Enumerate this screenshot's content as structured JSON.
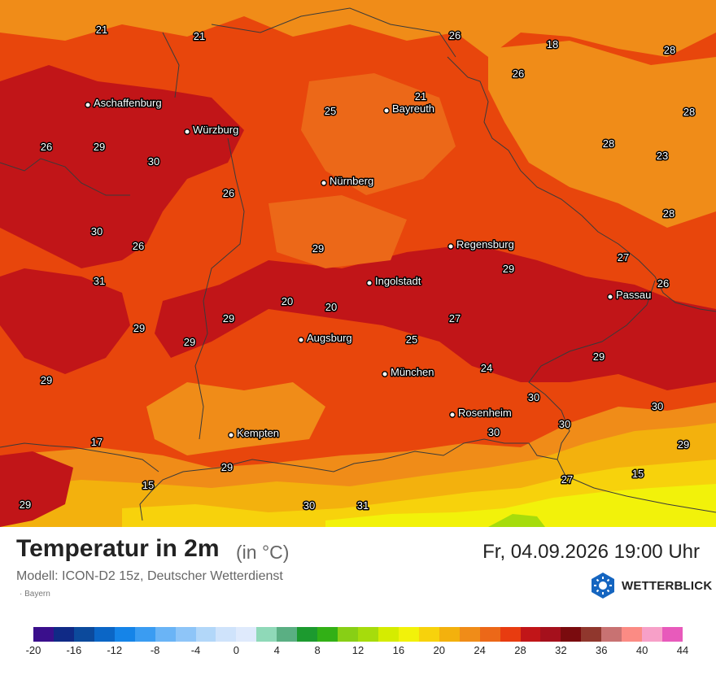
{
  "map": {
    "region": "Bayern",
    "cities": [
      {
        "name": "Aschaffenburg"
      },
      {
        "name": "Würzburg"
      },
      {
        "name": "Bayreuth"
      },
      {
        "name": "Nürnberg"
      },
      {
        "name": "Regensburg"
      },
      {
        "name": "Ingolstadt"
      },
      {
        "name": "Passau"
      },
      {
        "name": "Augsburg"
      },
      {
        "name": "München"
      },
      {
        "name": "Rosenheim"
      },
      {
        "name": "Kempten"
      }
    ],
    "temperature_labels": [
      "21",
      "21",
      "26",
      "18",
      "28",
      "26",
      "21",
      "25",
      "28",
      "26",
      "29",
      "30",
      "28",
      "23",
      "26",
      "28",
      "30",
      "26",
      "29",
      "31",
      "27",
      "26",
      "29",
      "20",
      "20",
      "29",
      "29",
      "29",
      "25",
      "29",
      "27",
      "24",
      "29",
      "30",
      "30",
      "30",
      "30",
      "29",
      "17",
      "29",
      "27",
      "15",
      "15",
      "29",
      "30",
      "31"
    ]
  },
  "header": {
    "title": "Temperatur in 2m",
    "unit": "(in °C)",
    "model": "Modell: ICON-D2 15z, Deutscher Wetterdienst",
    "region_note": "· Bayern",
    "datetime": "Fr, 04.09.2026 19:00 Uhr"
  },
  "brand": {
    "name": "WETTERBLICK",
    "icon": "sun-in-hexagon-icon",
    "color": "#1565c0"
  },
  "colors": {
    "border": "#3a3a3a",
    "map_base": "#e8460c"
  },
  "scale": {
    "labels": [
      "-20",
      "-16",
      "-12",
      "-8",
      "-4",
      "0",
      "4",
      "8",
      "12",
      "16",
      "20",
      "24",
      "28",
      "32",
      "36",
      "40",
      "44"
    ],
    "colors": [
      "#3a0f8c",
      "#102a86",
      "#0c4a9c",
      "#0b66c6",
      "#1584e8",
      "#3a9cf2",
      "#6ab4f6",
      "#8ec5f8",
      "#b2d7f9",
      "#cfe3fb",
      "#dfeafc",
      "#8fd9b8",
      "#5aaf83",
      "#1c9a2f",
      "#32b016",
      "#88cf15",
      "#a6dc0c",
      "#d5ec00",
      "#f2f20a",
      "#f7d20c",
      "#f3b10d",
      "#f08c18",
      "#ec6818",
      "#e83c10",
      "#c11518",
      "#a5101c",
      "#7a0b0e",
      "#90372d",
      "#c87272",
      "#fb8b84",
      "#f7a0c8",
      "#e85abb"
    ]
  }
}
